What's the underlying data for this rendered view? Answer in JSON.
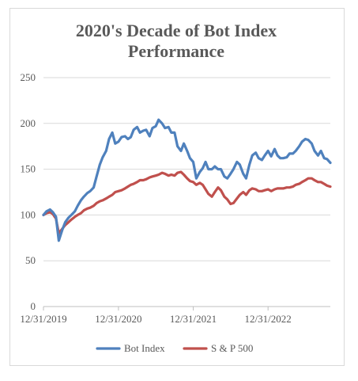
{
  "chart_data": {
    "type": "line",
    "title_lines": [
      "2020's Decade of Bot Index",
      "Performance"
    ],
    "xlabel": "",
    "ylabel": "",
    "ylim": [
      0,
      250
    ],
    "y_ticks": [
      "0",
      "50",
      "100",
      "150",
      "200",
      "250"
    ],
    "x_ticks": [
      "12/31/2019",
      "12/31/2020",
      "12/31/2021",
      "12/31/2022"
    ],
    "grid": "horizontal",
    "legend_position": "bottom",
    "x": [
      "2019-12-31",
      "2020-01-15",
      "2020-02-01",
      "2020-02-15",
      "2020-03-01",
      "2020-03-15",
      "2020-04-01",
      "2020-04-15",
      "2020-05-01",
      "2020-05-15",
      "2020-06-01",
      "2020-06-15",
      "2020-07-01",
      "2020-07-15",
      "2020-08-01",
      "2020-08-15",
      "2020-09-01",
      "2020-09-15",
      "2020-10-01",
      "2020-10-15",
      "2020-11-01",
      "2020-11-15",
      "2020-12-01",
      "2020-12-15",
      "2020-12-31",
      "2021-01-15",
      "2021-02-01",
      "2021-02-15",
      "2021-03-01",
      "2021-03-15",
      "2021-04-01",
      "2021-04-15",
      "2021-05-01",
      "2021-05-15",
      "2021-06-01",
      "2021-06-15",
      "2021-07-01",
      "2021-07-15",
      "2021-08-01",
      "2021-08-15",
      "2021-09-01",
      "2021-09-15",
      "2021-10-01",
      "2021-10-15",
      "2021-11-01",
      "2021-11-15",
      "2021-12-01",
      "2021-12-15",
      "2021-12-31",
      "2022-01-15",
      "2022-02-01",
      "2022-02-15",
      "2022-03-01",
      "2022-03-15",
      "2022-04-01",
      "2022-04-15",
      "2022-05-01",
      "2022-05-15",
      "2022-06-01",
      "2022-06-15",
      "2022-07-01",
      "2022-07-15",
      "2022-08-01",
      "2022-08-15",
      "2022-09-01",
      "2022-09-15",
      "2022-10-01",
      "2022-10-15",
      "2022-11-01",
      "2022-11-15",
      "2022-12-01",
      "2022-12-15",
      "2022-12-31",
      "2023-01-15",
      "2023-02-01",
      "2023-02-15",
      "2023-03-01",
      "2023-03-15",
      "2023-04-01",
      "2023-04-15",
      "2023-05-01",
      "2023-05-15",
      "2023-06-01",
      "2023-06-15",
      "2023-07-01",
      "2023-07-15",
      "2023-08-01",
      "2023-08-15",
      "2023-09-01",
      "2023-09-15",
      "2023-10-01",
      "2023-10-15",
      "2023-10-31"
    ],
    "series": [
      {
        "name": "Bot Index",
        "color": "#4f81bd",
        "values": [
          100,
          104,
          106,
          103,
          98,
          72,
          84,
          92,
          97,
          100,
          104,
          110,
          116,
          120,
          124,
          126,
          130,
          142,
          155,
          163,
          170,
          183,
          190,
          178,
          180,
          185,
          186,
          183,
          185,
          193,
          196,
          190,
          192,
          193,
          186,
          195,
          197,
          204,
          200,
          195,
          196,
          190,
          190,
          175,
          170,
          178,
          170,
          162,
          158,
          140,
          147,
          151,
          158,
          150,
          150,
          153,
          150,
          150,
          142,
          140,
          145,
          150,
          158,
          155,
          145,
          140,
          155,
          165,
          168,
          162,
          160,
          165,
          170,
          164,
          172,
          165,
          162,
          162,
          163,
          167,
          167,
          170,
          175,
          180,
          183,
          182,
          178,
          170,
          165,
          170,
          162,
          161,
          157
        ]
      },
      {
        "name": "S & P 500",
        "color": "#c0504d",
        "values": [
          100,
          102,
          103,
          101,
          96,
          80,
          85,
          89,
          92,
          95,
          98,
          100,
          102,
          105,
          107,
          108,
          110,
          113,
          115,
          116,
          118,
          120,
          122,
          125,
          126,
          127,
          129,
          131,
          133,
          134,
          136,
          138,
          138,
          139,
          141,
          142,
          143,
          144,
          146,
          145,
          143,
          144,
          143,
          146,
          147,
          144,
          140,
          137,
          136,
          133,
          135,
          133,
          128,
          123,
          120,
          125,
          130,
          127,
          120,
          117,
          112,
          113,
          118,
          122,
          125,
          122,
          127,
          129,
          128,
          126,
          126,
          127,
          128,
          126,
          128,
          129,
          129,
          129,
          130,
          130,
          131,
          133,
          134,
          136,
          138,
          140,
          140,
          138,
          136,
          136,
          134,
          132,
          131
        ]
      }
    ]
  }
}
